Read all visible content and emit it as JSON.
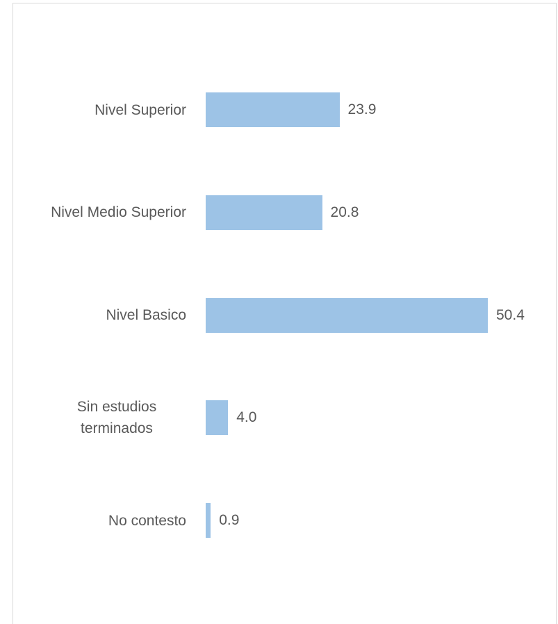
{
  "chart_data": {
    "type": "barh",
    "categories": [
      "Nivel Superior",
      "Nivel Medio Superior",
      "Nivel Basico",
      "Sin estudios terminados",
      "No contesto"
    ],
    "values": [
      23.9,
      20.8,
      50.4,
      4.0,
      0.9
    ],
    "value_labels": [
      "23.9",
      "20.8",
      "50.4",
      "4.0",
      "0.9"
    ],
    "color": "#9dc3e6"
  }
}
